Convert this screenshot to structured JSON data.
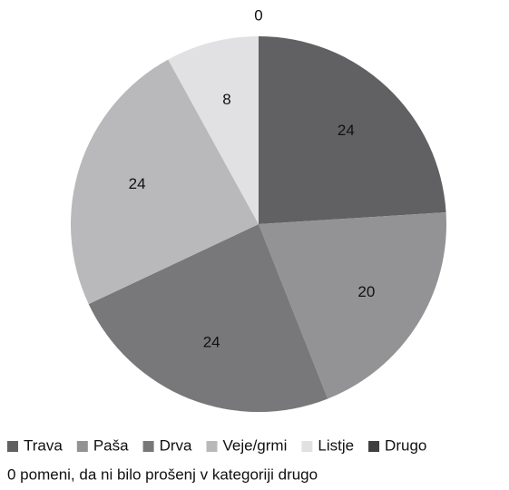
{
  "chart_data": {
    "type": "pie",
    "categories": [
      "Trava",
      "Paša",
      "Drva",
      "Veje/grmi",
      "Listje",
      "Drugo"
    ],
    "values": [
      24,
      20,
      24,
      24,
      8,
      0
    ],
    "colors": [
      "#616163",
      "#939395",
      "#78787a",
      "#b9b9bb",
      "#e1e1e3",
      "#3f3f41"
    ],
    "legend": "bottom",
    "annotation": "0 pomeni, da ni bilo prošenj v kategoriji drugo"
  }
}
